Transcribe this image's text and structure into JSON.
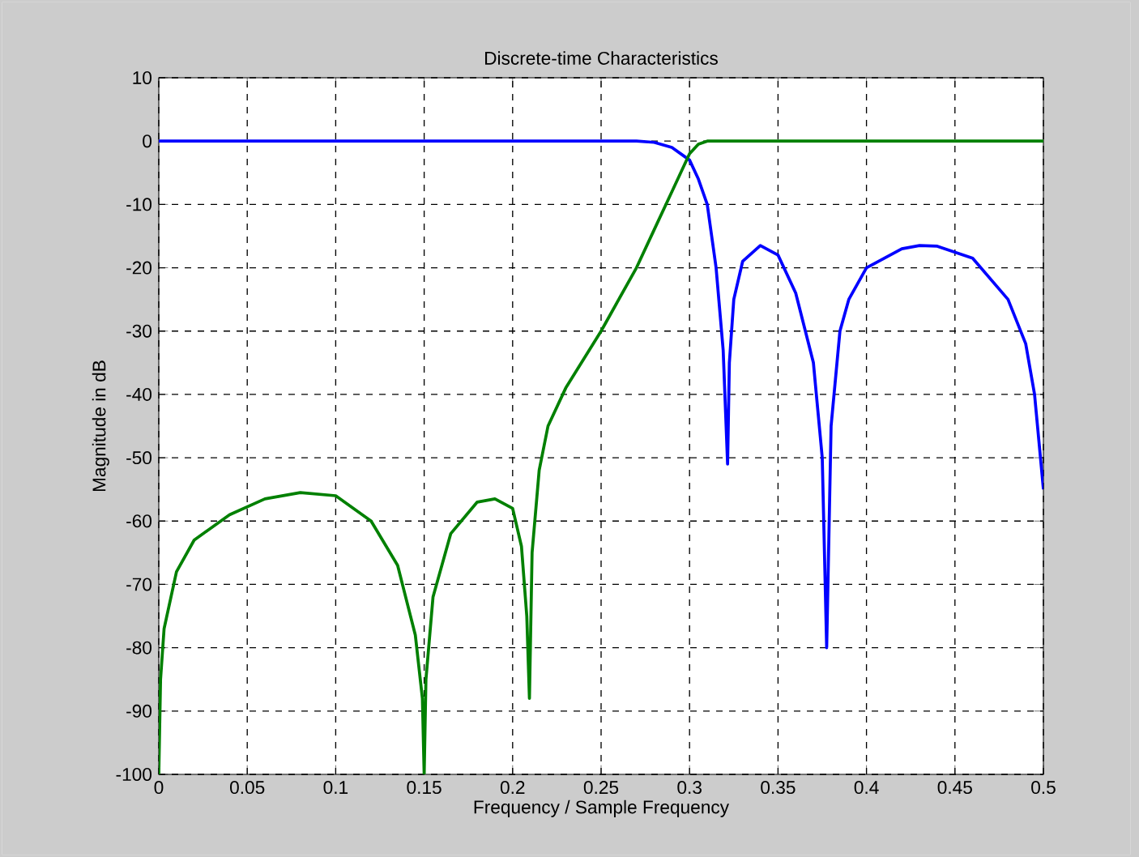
{
  "chart_data": {
    "type": "line",
    "title": "Discrete-time Characteristics",
    "xlabel": "Frequency / Sample Frequency",
    "ylabel": "Magnitude in dB",
    "xlim": [
      0,
      0.5
    ],
    "ylim": [
      -100,
      10
    ],
    "xticks": [
      0,
      0.05,
      0.1,
      0.15,
      0.2,
      0.25,
      0.3,
      0.35,
      0.4,
      0.45,
      0.5
    ],
    "yticks": [
      -100,
      -90,
      -80,
      -70,
      -60,
      -50,
      -40,
      -30,
      -20,
      -10,
      0,
      10
    ],
    "grid": true,
    "line_style": "solid",
    "series": [
      {
        "color": "#0000ff",
        "x": [
          0,
          0.27,
          0.28,
          0.29,
          0.3,
          0.305,
          0.31,
          0.315,
          0.319,
          0.3215,
          0.3225,
          0.325,
          0.33,
          0.34,
          0.35,
          0.36,
          0.37,
          0.375,
          0.3775,
          0.38,
          0.385,
          0.39,
          0.4,
          0.42,
          0.43,
          0.44,
          0.46,
          0.48,
          0.49,
          0.495,
          0.5
        ],
        "values": [
          0,
          0,
          -0.2,
          -1,
          -3,
          -6,
          -10,
          -20,
          -33,
          -51,
          -35,
          -25,
          -19,
          -16.5,
          -18,
          -24,
          -35,
          -50,
          -80,
          -45,
          -30,
          -25,
          -20,
          -17,
          -16.5,
          -16.6,
          -18.5,
          -25,
          -32,
          -40,
          -55
        ]
      },
      {
        "color": "#008000",
        "x": [
          0,
          0.001,
          0.003,
          0.01,
          0.02,
          0.04,
          0.06,
          0.08,
          0.1,
          0.12,
          0.135,
          0.145,
          0.149,
          0.15,
          0.151,
          0.155,
          0.165,
          0.18,
          0.19,
          0.2,
          0.205,
          0.208,
          0.2095,
          0.211,
          0.215,
          0.22,
          0.23,
          0.25,
          0.27,
          0.28,
          0.29,
          0.3,
          0.305,
          0.31,
          0.5
        ],
        "values": [
          -100,
          -85,
          -77,
          -68,
          -63,
          -59,
          -56.5,
          -55.5,
          -56,
          -60,
          -67,
          -78,
          -88,
          -100,
          -85,
          -72,
          -62,
          -57,
          -56.5,
          -58,
          -64,
          -75,
          -88,
          -65,
          -52,
          -45,
          -39,
          -30,
          -20,
          -14,
          -8,
          -2,
          -0.5,
          0,
          0
        ]
      }
    ]
  }
}
